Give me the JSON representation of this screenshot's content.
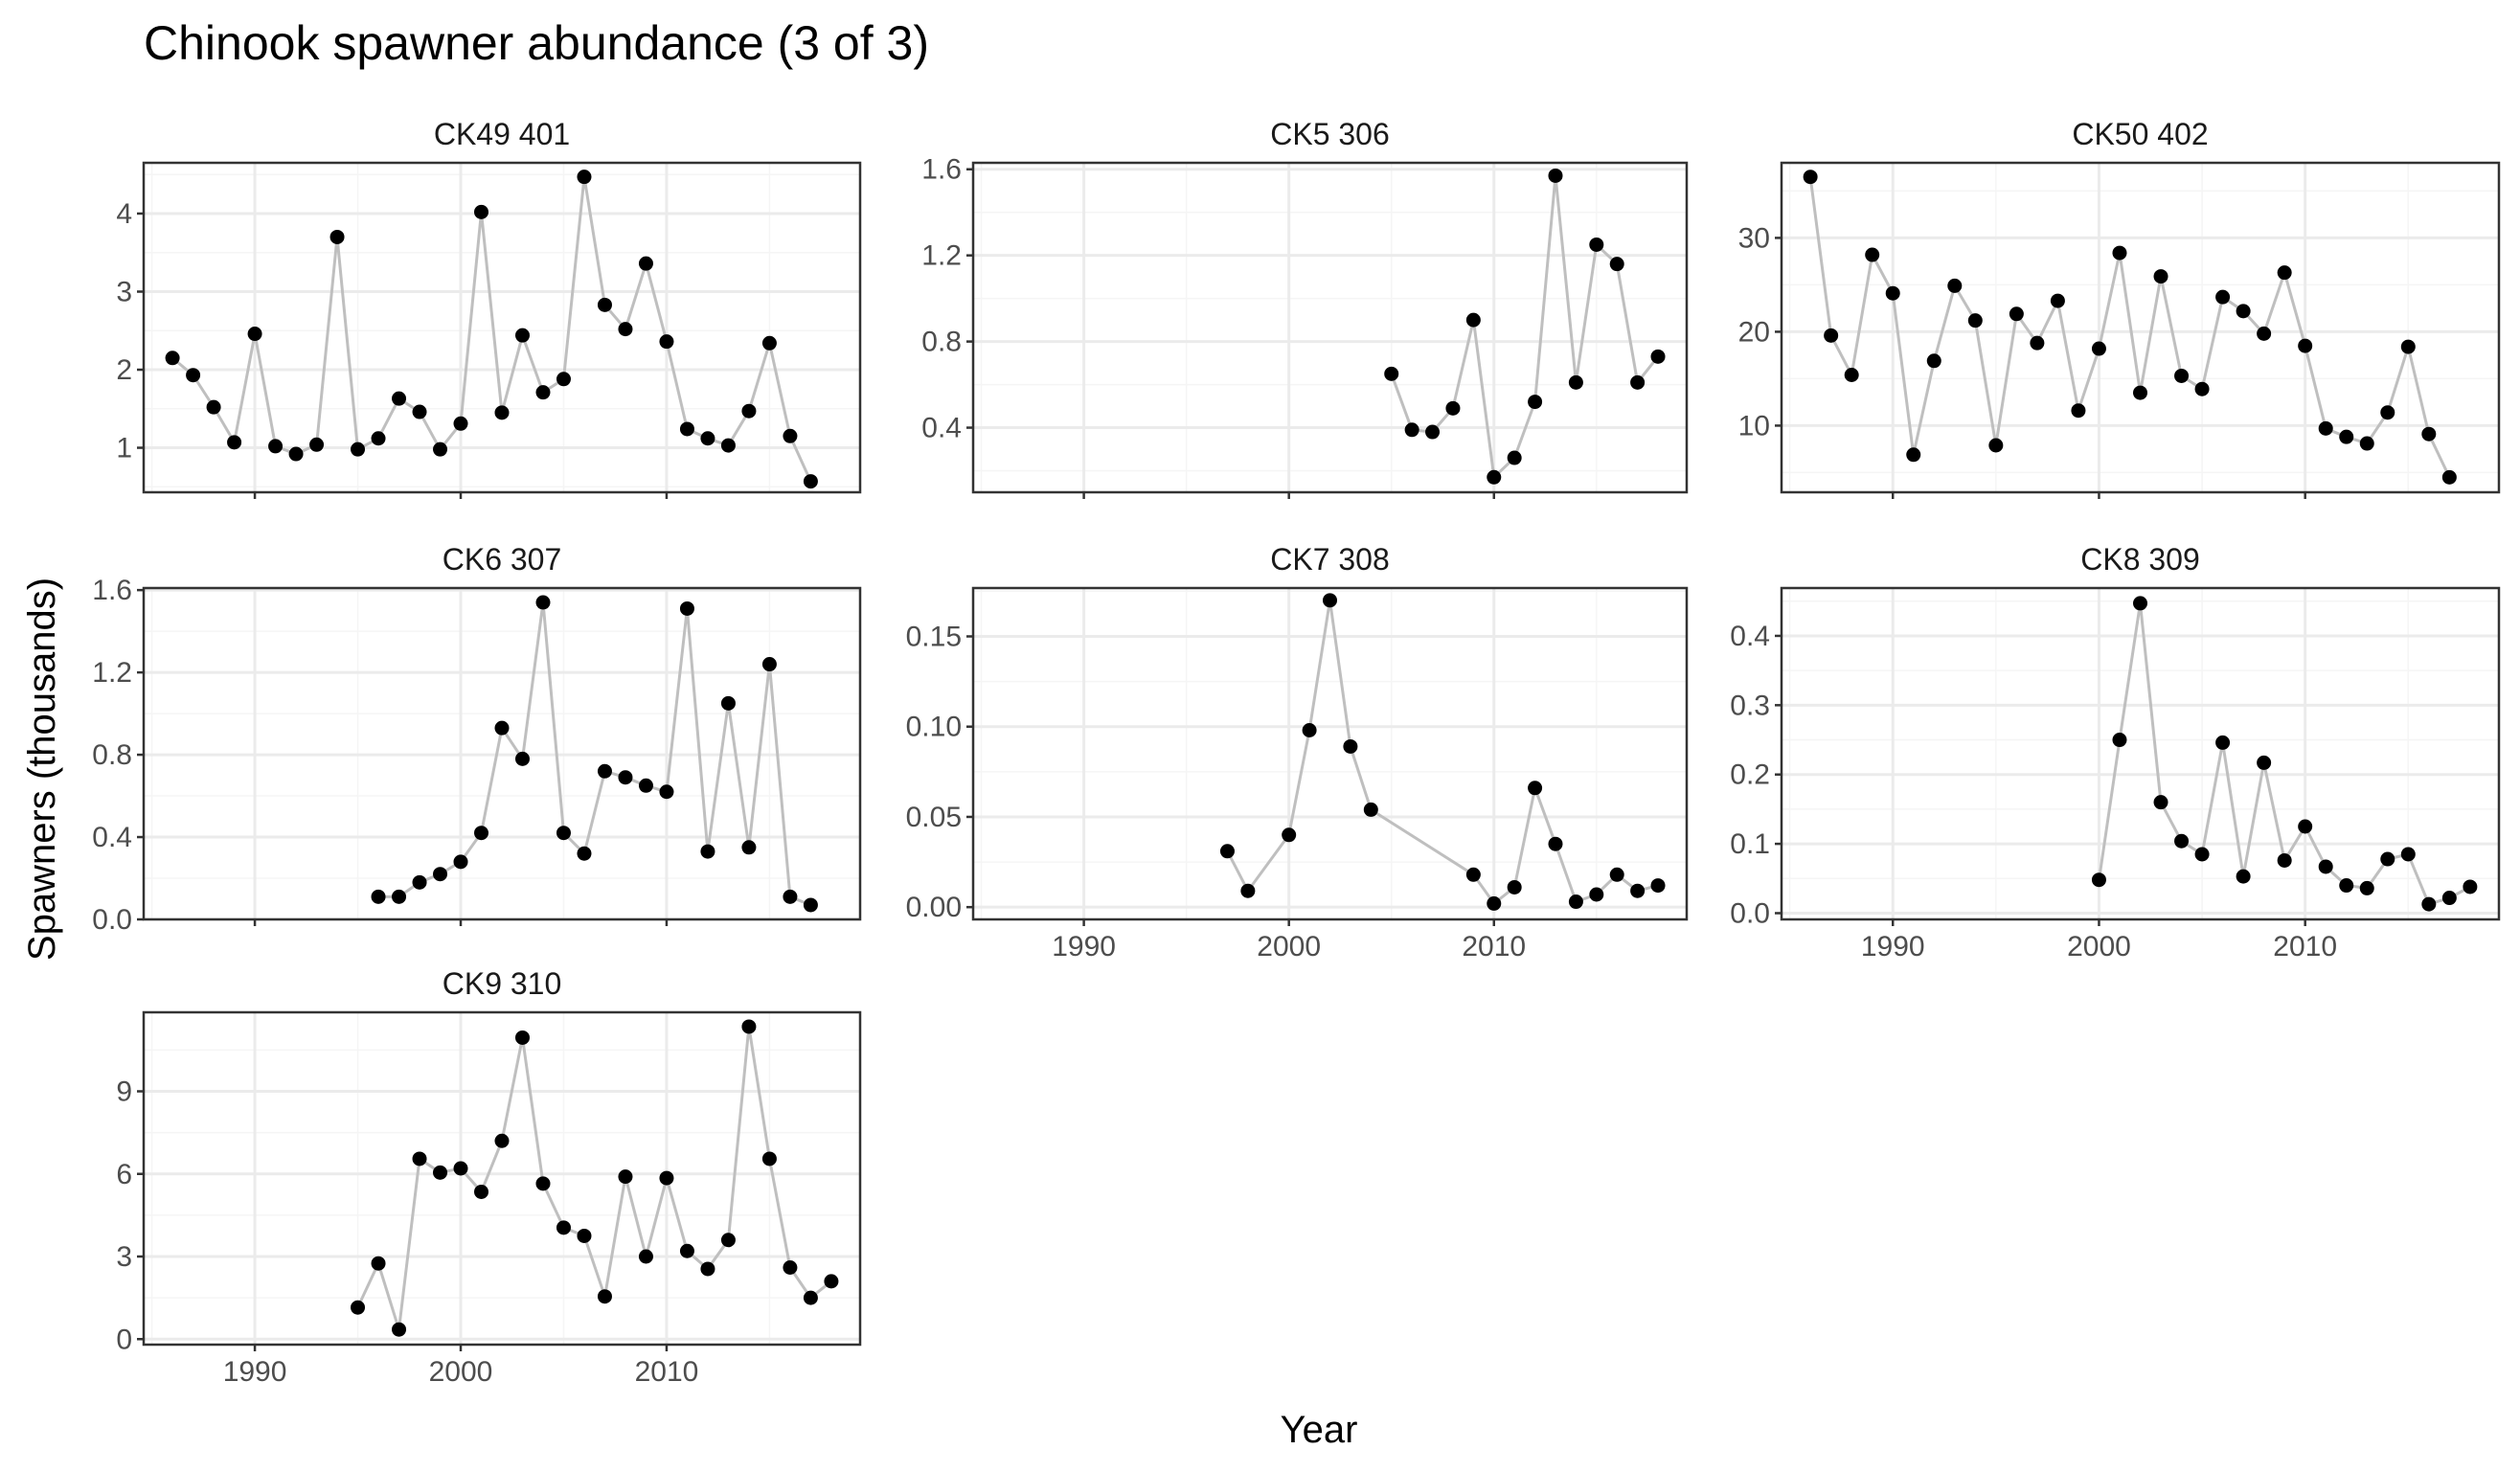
{
  "title": "Chinook spawner abundance (3 of 3)",
  "xlabel": "Year",
  "ylabel": "Spawners (thousands)",
  "colors": {
    "line": "#bfbfbf",
    "point": "#000000",
    "grid_major": "#ebebeb",
    "grid_minor": "#f5f5f5",
    "border": "#333333"
  },
  "chart_data": [
    {
      "type": "line",
      "facet": "CK49 401",
      "x": [
        1986,
        1987,
        1988,
        1989,
        1990,
        1991,
        1992,
        1993,
        1994,
        1995,
        1996,
        1997,
        1998,
        1999,
        2000,
        2001,
        2002,
        2003,
        2004,
        2005,
        2006,
        2007,
        2008,
        2009,
        2010,
        2011,
        2012,
        2013,
        2014,
        2015,
        2016,
        2017
      ],
      "y": [
        2.15,
        1.93,
        1.52,
        1.07,
        2.46,
        1.02,
        0.92,
        1.04,
        3.7,
        0.98,
        1.12,
        1.63,
        1.46,
        0.98,
        1.31,
        4.02,
        1.45,
        2.44,
        1.71,
        1.88,
        4.47,
        2.83,
        2.52,
        3.36,
        2.36,
        1.24,
        1.12,
        1.03,
        1.47,
        2.34,
        1.15,
        0.57
      ],
      "xlim": [
        1984.6,
        2019.4
      ],
      "ylim": [
        0.43,
        4.65
      ],
      "x_ticks": [
        1990,
        2000,
        2010
      ],
      "y_ticks": [
        1,
        2,
        3,
        4
      ],
      "y_tick_labels": [
        "1",
        "2",
        "3",
        "4"
      ],
      "show_x_tick_labels": false
    },
    {
      "type": "line",
      "facet": "CK5 306",
      "x": [
        2005,
        2006,
        2007,
        2008,
        2009,
        2010,
        2011,
        2012,
        2013,
        2014,
        2015,
        2016,
        2017,
        2018
      ],
      "y": [
        0.65,
        0.39,
        0.38,
        0.49,
        0.9,
        0.17,
        0.26,
        0.52,
        1.57,
        0.61,
        1.25,
        1.16,
        0.61,
        0.73
      ],
      "xlim": [
        1984.6,
        2019.4
      ],
      "ylim": [
        0.1,
        1.63
      ],
      "x_ticks": [
        1990,
        2000,
        2010
      ],
      "y_ticks": [
        0.4,
        0.8,
        1.2,
        1.6
      ],
      "y_tick_labels": [
        "0.4",
        "0.8",
        "1.2",
        "1.6"
      ],
      "show_x_tick_labels": false
    },
    {
      "type": "line",
      "facet": "CK50 402",
      "x": [
        1986,
        1987,
        1988,
        1989,
        1990,
        1991,
        1992,
        1993,
        1994,
        1995,
        1996,
        1997,
        1998,
        1999,
        2000,
        2001,
        2002,
        2003,
        2004,
        2005,
        2006,
        2007,
        2008,
        2009,
        2010,
        2011,
        2012,
        2013,
        2014,
        2015,
        2016,
        2017
      ],
      "y": [
        36.5,
        19.6,
        15.4,
        28.2,
        24.1,
        6.9,
        16.9,
        24.9,
        21.2,
        7.9,
        21.9,
        18.8,
        23.3,
        11.6,
        18.2,
        28.4,
        13.5,
        25.9,
        15.3,
        13.9,
        23.7,
        22.2,
        19.8,
        26.3,
        18.5,
        9.7,
        8.8,
        8.1,
        11.4,
        18.4,
        9.1,
        4.5
      ],
      "xlim": [
        1984.6,
        2019.4
      ],
      "ylim": [
        2.9,
        38.0
      ],
      "x_ticks": [
        1990,
        2000,
        2010
      ],
      "y_ticks": [
        10,
        20,
        30
      ],
      "y_tick_labels": [
        "10",
        "20",
        "30"
      ],
      "show_x_tick_labels": false
    },
    {
      "type": "line",
      "facet": "CK6 307",
      "x": [
        1996,
        1997,
        1998,
        1999,
        2000,
        2001,
        2002,
        2003,
        2004,
        2005,
        2006,
        2007,
        2008,
        2009,
        2010,
        2011,
        2012,
        2013,
        2014,
        2015,
        2016,
        2017
      ],
      "y": [
        0.11,
        0.11,
        0.18,
        0.22,
        0.28,
        0.42,
        0.93,
        0.78,
        1.54,
        0.42,
        0.32,
        0.72,
        0.69,
        0.65,
        0.62,
        1.51,
        0.33,
        1.05,
        0.35,
        1.24,
        0.11,
        0.07
      ],
      "xlim": [
        1984.6,
        2019.4
      ],
      "ylim": [
        0.0,
        1.61
      ],
      "x_ticks": [
        1990,
        2000,
        2010
      ],
      "y_ticks": [
        0.0,
        0.4,
        0.8,
        1.2,
        1.6
      ],
      "y_tick_labels": [
        "0.0",
        "0.4",
        "0.8",
        "1.2",
        "1.6"
      ],
      "show_x_tick_labels": false
    },
    {
      "type": "line",
      "facet": "CK7 308",
      "x": [
        1997,
        1998,
        2000,
        2001,
        2002,
        2003,
        2004,
        2009,
        2010,
        2011,
        2012,
        2013,
        2014,
        2015,
        2016,
        2017,
        2018
      ],
      "y": [
        0.031,
        0.009,
        0.04,
        0.098,
        0.17,
        0.089,
        0.054,
        0.018,
        0.002,
        0.011,
        0.066,
        0.035,
        0.003,
        0.007,
        0.018,
        0.009,
        0.012
      ],
      "xlim": [
        1984.6,
        2019.4
      ],
      "ylim": [
        -0.0068,
        0.1768
      ],
      "x_ticks": [
        1990,
        2000,
        2010
      ],
      "y_ticks": [
        0.0,
        0.05,
        0.1,
        0.15
      ],
      "y_tick_labels": [
        "0.00",
        "0.05",
        "0.10",
        "0.15"
      ],
      "show_x_tick_labels": true
    },
    {
      "type": "line",
      "facet": "CK8 309",
      "x": [
        2000,
        2001,
        2002,
        2003,
        2004,
        2005,
        2006,
        2007,
        2008,
        2009,
        2010,
        2011,
        2012,
        2013,
        2014,
        2015,
        2016,
        2017,
        2018
      ],
      "y": [
        0.048,
        0.25,
        0.447,
        0.16,
        0.104,
        0.085,
        0.246,
        0.053,
        0.217,
        0.076,
        0.125,
        0.067,
        0.04,
        0.036,
        0.078,
        0.085,
        0.013,
        0.022,
        0.038
      ],
      "xlim": [
        1984.6,
        2019.4
      ],
      "ylim": [
        -0.009,
        0.469
      ],
      "x_ticks": [
        1990,
        2000,
        2010
      ],
      "y_ticks": [
        0.0,
        0.1,
        0.2,
        0.3,
        0.4
      ],
      "y_tick_labels": [
        "0.0",
        "0.1",
        "0.2",
        "0.3",
        "0.4"
      ],
      "show_x_tick_labels": true
    },
    {
      "type": "line",
      "facet": "CK9 310",
      "x": [
        1995,
        1996,
        1997,
        1998,
        1999,
        2000,
        2001,
        2002,
        2003,
        2004,
        2005,
        2006,
        2007,
        2008,
        2009,
        2010,
        2011,
        2012,
        2013,
        2014,
        2015,
        2016,
        2017,
        2018
      ],
      "y": [
        1.15,
        2.75,
        0.35,
        6.55,
        6.05,
        6.2,
        5.35,
        7.2,
        10.95,
        5.65,
        4.05,
        3.75,
        1.55,
        5.9,
        3.0,
        5.85,
        3.2,
        2.55,
        3.6,
        11.35,
        6.55,
        2.6,
        1.5,
        2.1
      ],
      "xlim": [
        1984.6,
        2019.4
      ],
      "ylim": [
        -0.2,
        11.87
      ],
      "x_ticks": [
        1990,
        2000,
        2010
      ],
      "y_ticks": [
        0,
        3,
        6,
        9
      ],
      "y_tick_labels": [
        "0",
        "3",
        "6",
        "9"
      ],
      "show_x_tick_labels": true
    }
  ]
}
